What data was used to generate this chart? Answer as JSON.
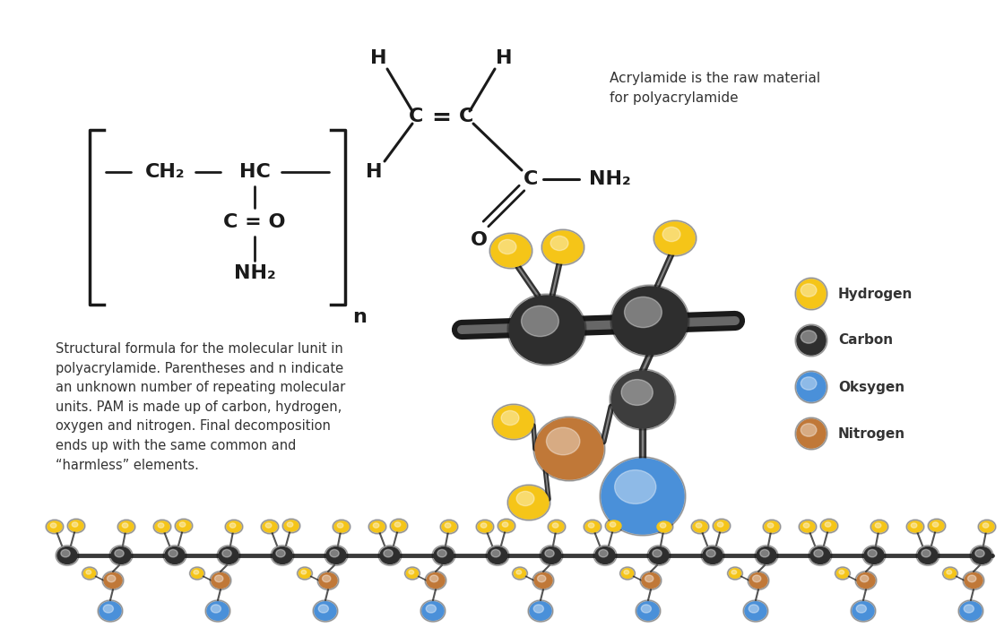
{
  "background_color": "#ffffff",
  "acrylamide_label": "Acrylamide is the raw material\nfor polyacrylamide",
  "structural_text": "Structural formula for the molecular lunit in\npolyacrylamide. Parentheses and n indicate\nan unknown number of repeating molecular\nunits. PAM is made up of carbon, hydrogen,\noxygen and nitrogen. Final decomposition\nends up with the same common and\n“harmless” elements.",
  "legend_labels": [
    "Hydrogen",
    "Carbon",
    "Oksygen",
    "Nitrogen"
  ],
  "hydrogen_color": "#f5c518",
  "carbon_color": "#2e2e2e",
  "oxygen_color": "#4a90d9",
  "nitrogen_color": "#c07838",
  "bond_color": "#1a1a1a",
  "text_color": "#333333"
}
